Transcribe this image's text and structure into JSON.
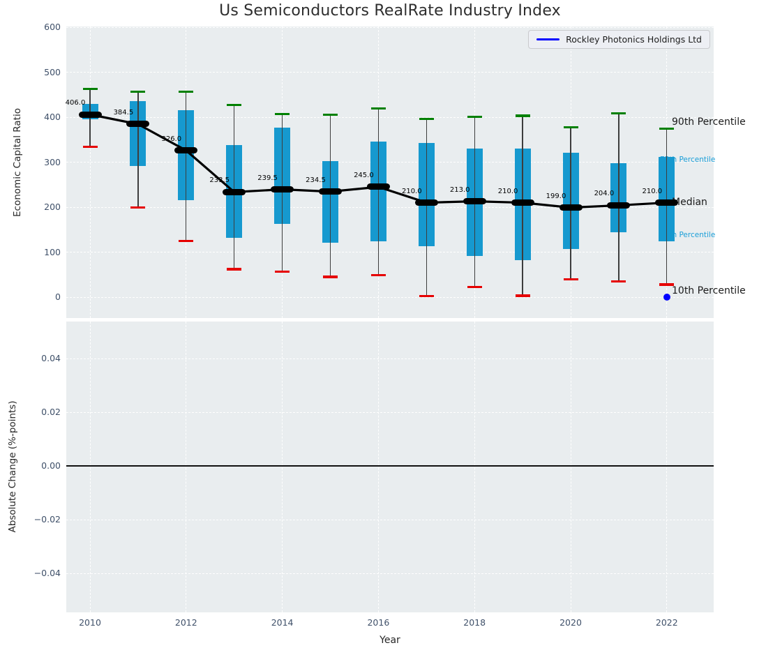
{
  "colors": {
    "box": "#1699cf",
    "p90_cap": "#008000",
    "p10_cap": "#e60000",
    "whisker": "#3d3d3d",
    "median": "#000000",
    "company": "#0000ff",
    "minor_label": "#1b9fd8",
    "tick": "#3f5069",
    "axes_bg": "#e9edef"
  },
  "chart_data": [
    {
      "type": "boxplot",
      "title": "Us Semiconductors RealRate Industry Index",
      "xlabel": "Year",
      "ylabel": "Economic Capital Ratio",
      "ylim": [
        -50,
        600
      ],
      "yticks": [
        0,
        100,
        200,
        300,
        400,
        500,
        600
      ],
      "xticks": [
        2010,
        2012,
        2014,
        2016,
        2018,
        2020,
        2022
      ],
      "grid": "dashed-white",
      "legend": {
        "label": "Rockley Photonics Holdings Ltd",
        "position": "upper right",
        "line_color": "#0000ff"
      },
      "boxes": [
        {
          "year": 2010,
          "median": 406.0,
          "label": "406.0",
          "q1": 395,
          "q3": 430,
          "p10": 334,
          "p90": 463
        },
        {
          "year": 2011,
          "median": 384.5,
          "label": "384.5",
          "q1": 291,
          "q3": 436,
          "p10": 199,
          "p90": 457
        },
        {
          "year": 2012,
          "median": 326.0,
          "label": "326.0",
          "q1": 216,
          "q3": 416,
          "p10": 125,
          "p90": 457
        },
        {
          "year": 2013,
          "median": 233.5,
          "label": "233.5",
          "q1": 131,
          "q3": 338,
          "p10": 62,
          "p90": 427
        },
        {
          "year": 2014,
          "median": 239.5,
          "label": "239.5",
          "q1": 163,
          "q3": 377,
          "p10": 57,
          "p90": 407
        },
        {
          "year": 2015,
          "median": 234.5,
          "label": "234.5",
          "q1": 121,
          "q3": 302,
          "p10": 45,
          "p90": 405
        },
        {
          "year": 2016,
          "median": 245.0,
          "label": "245.0",
          "q1": 124,
          "q3": 346,
          "p10": 49,
          "p90": 420
        },
        {
          "year": 2017,
          "median": 210.0,
          "label": "210.0",
          "q1": 113,
          "q3": 342,
          "p10": 2,
          "p90": 396
        },
        {
          "year": 2018,
          "median": 213.0,
          "label": "213.0",
          "q1": 91,
          "q3": 330,
          "p10": 22,
          "p90": 401
        },
        {
          "year": 2019,
          "median": 210.0,
          "label": "210.0",
          "q1": 82,
          "q3": 331,
          "p10": 3,
          "p90": 403
        },
        {
          "year": 2020,
          "median": 199.0,
          "label": "199.0",
          "q1": 107,
          "q3": 321,
          "p10": 40,
          "p90": 378
        },
        {
          "year": 2021,
          "median": 204.0,
          "label": "204.0",
          "q1": 144,
          "q3": 298,
          "p10": 35,
          "p90": 409
        },
        {
          "year": 2022,
          "median": 210.0,
          "label": "210.0",
          "q1": 124,
          "q3": 312,
          "p10": 28,
          "p90": 375
        }
      ],
      "company_point": {
        "name": "Rockley Photonics Holdings Ltd",
        "year": 2022,
        "value": 0
      },
      "right_labels": [
        {
          "text": "90th Percentile",
          "anchor": "p90",
          "style": "major"
        },
        {
          "text": "75th Percentile",
          "anchor": "q3",
          "style": "minor"
        },
        {
          "text": "Median",
          "anchor": "median",
          "style": "major"
        },
        {
          "text": "25th Percentile",
          "anchor": "q1",
          "style": "minor"
        },
        {
          "text": "10th Percentile",
          "anchor": "p10",
          "style": "major"
        }
      ]
    },
    {
      "type": "line",
      "xlabel": "Year",
      "ylabel": "Absolute Change (%-points)",
      "ylim": [
        -0.055,
        0.055
      ],
      "ytick_values": [
        0.04,
        0.02,
        0,
        -0.02,
        -0.04
      ],
      "ytick_labels": [
        "0.04",
        "0.02",
        "0.00",
        "−0.02",
        "−0.04"
      ],
      "xticks": [
        2010,
        2012,
        2014,
        2016,
        2018,
        2020,
        2022
      ],
      "zero_line": 0.0,
      "x": [],
      "values": []
    }
  ]
}
